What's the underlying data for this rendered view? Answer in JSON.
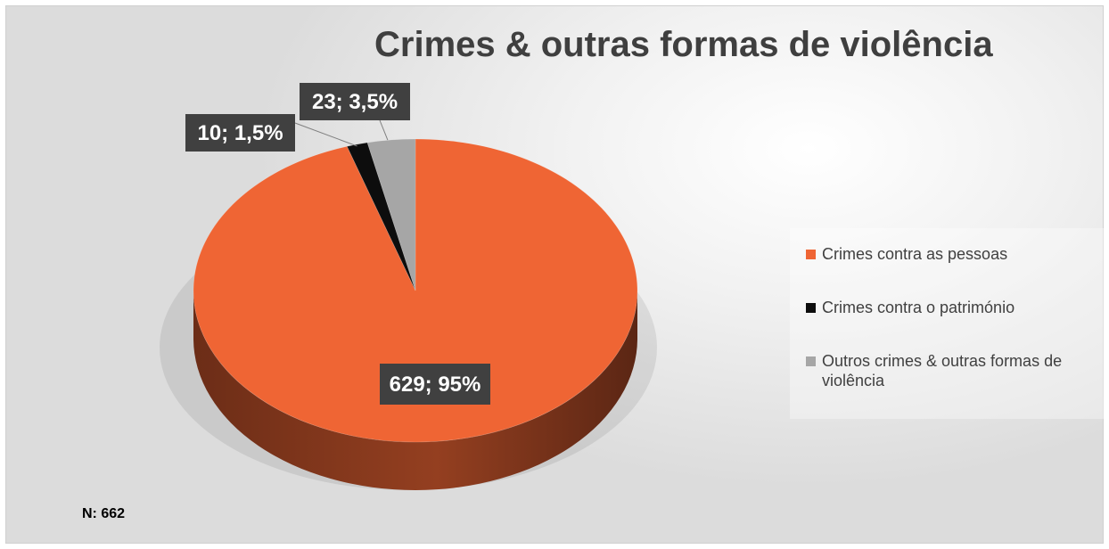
{
  "chart_data": {
    "type": "pie",
    "title": "Crimes & outras formas de violência",
    "slices": [
      {
        "label": "Crimes contra as pessoas",
        "value": 629,
        "percent_label": "95%",
        "data_label": "629; 95%",
        "color": "#ef6534"
      },
      {
        "label": "Crimes contra o património",
        "value": 10,
        "percent_label": "1,5%",
        "data_label": "10; 1,5%",
        "color": "#0d0d0d"
      },
      {
        "label": "Outros crimes & outras formas de violência",
        "value": 23,
        "percent_label": "3,5%",
        "data_label": "23; 3,5%",
        "color": "#a6a6a6"
      }
    ],
    "legend_position": "right",
    "style": "3d"
  },
  "footnote": "N: 662",
  "colors": {
    "label_bg": "#404040",
    "label_text": "#ffffff",
    "title": "#3f3f3f"
  }
}
